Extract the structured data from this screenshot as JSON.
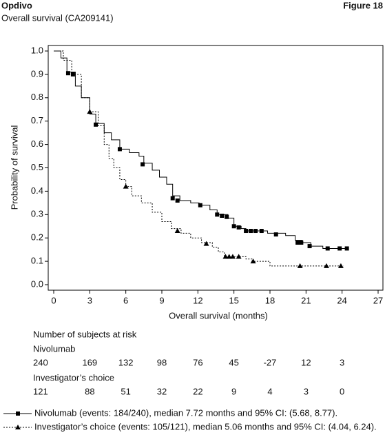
{
  "header": {
    "product": "Opdivo",
    "subtitle": "Overall survival (CA209141)",
    "figure": "Figure 18"
  },
  "chart_data": {
    "type": "line",
    "step": true,
    "xlabel": "Overall survival (months)",
    "ylabel": "Probability of survival",
    "xlim": [
      0,
      27
    ],
    "ylim": [
      0,
      1
    ],
    "xticks": [
      0,
      3,
      6,
      9,
      12,
      15,
      18,
      21,
      24,
      27
    ],
    "yticks": [
      {
        "value": 0,
        "label": "0.0"
      },
      0.1,
      0.2,
      0.3,
      0.4,
      0.5,
      0.6,
      0.7,
      0.8,
      0.9,
      {
        "value": 1,
        "label": "1.0"
      }
    ],
    "series": [
      {
        "name": "Nivolumab (events: 184/240), median 7.72 months and 95% CI: (5.68, 8.77).",
        "color": "#000000",
        "dash": "none",
        "marker": "square",
        "x": [
          0,
          0.6,
          1.1,
          1.8,
          2.3,
          3,
          3.5,
          4.2,
          4.8,
          5.5,
          6.3,
          7.1,
          7.5,
          8.2,
          8.8,
          9.4,
          9.9,
          10.5,
          11.4,
          12.1,
          13,
          13.6,
          14.5,
          15,
          15.6,
          16,
          17.8,
          19.3,
          20.1,
          20.7,
          21.4,
          22.4,
          24.5
        ],
        "values": [
          1,
          0.97,
          0.91,
          0.85,
          0.8,
          0.73,
          0.69,
          0.65,
          0.62,
          0.58,
          0.565,
          0.55,
          0.52,
          0.49,
          0.46,
          0.43,
          0.38,
          0.36,
          0.35,
          0.34,
          0.32,
          0.3,
          0.285,
          0.25,
          0.24,
          0.23,
          0.22,
          0.21,
          0.19,
          0.18,
          0.165,
          0.155,
          0.155
        ],
        "markers": {
          "x": [
            1.2,
            1.6,
            3.5,
            5.5,
            7.4,
            9.9,
            10.3,
            12.2,
            13.6,
            14.0,
            14.4,
            15.0,
            15.4,
            16.0,
            16.4,
            16.8,
            17.3,
            18.5,
            20.3,
            20.6,
            21.3,
            22.8,
            23.8,
            24.4
          ],
          "values": [
            0.905,
            0.9,
            0.685,
            0.58,
            0.515,
            0.37,
            0.36,
            0.34,
            0.3,
            0.295,
            0.29,
            0.25,
            0.245,
            0.23,
            0.23,
            0.23,
            0.23,
            0.215,
            0.18,
            0.18,
            0.165,
            0.155,
            0.155,
            0.155
          ]
        }
      },
      {
        "name": "Investigator’s choice (events: 105/121), median 5.06 months and 95% CI: (4.04, 6.24).",
        "color": "#000000",
        "dash": "2,2",
        "marker": "triangle",
        "x": [
          0,
          0.8,
          1.5,
          2.3,
          3,
          3.7,
          4.2,
          4.6,
          5,
          5.5,
          6,
          6.5,
          7.3,
          8.2,
          9,
          9.8,
          10.6,
          11.4,
          12.3,
          13.2,
          13.7,
          14.2,
          16,
          16.5,
          18,
          24.1
        ],
        "values": [
          1,
          0.96,
          0.9,
          0.8,
          0.74,
          0.68,
          0.6,
          0.54,
          0.5,
          0.45,
          0.42,
          0.38,
          0.35,
          0.31,
          0.27,
          0.24,
          0.22,
          0.2,
          0.18,
          0.16,
          0.14,
          0.12,
          0.11,
          0.1,
          0.08,
          0.08
        ],
        "markers": {
          "x": [
            3,
            6,
            10.3,
            12.7,
            14.3,
            14.6,
            14.9,
            15.4,
            16.6,
            20.5,
            22.7,
            23.9
          ],
          "values": [
            0.74,
            0.42,
            0.23,
            0.175,
            0.12,
            0.12,
            0.12,
            0.12,
            0.1,
            0.08,
            0.08,
            0.08
          ]
        }
      }
    ],
    "at_risk": {
      "title": "Number of subjects at risk",
      "rows": [
        {
          "name": "Nivolumab",
          "values": [
            240,
            169,
            132,
            98,
            76,
            45,
            -27,
            12,
            3
          ]
        },
        {
          "name": "Investigator’s choice",
          "values": [
            121,
            88,
            51,
            32,
            22,
            9,
            4,
            3,
            0
          ]
        }
      ]
    }
  }
}
